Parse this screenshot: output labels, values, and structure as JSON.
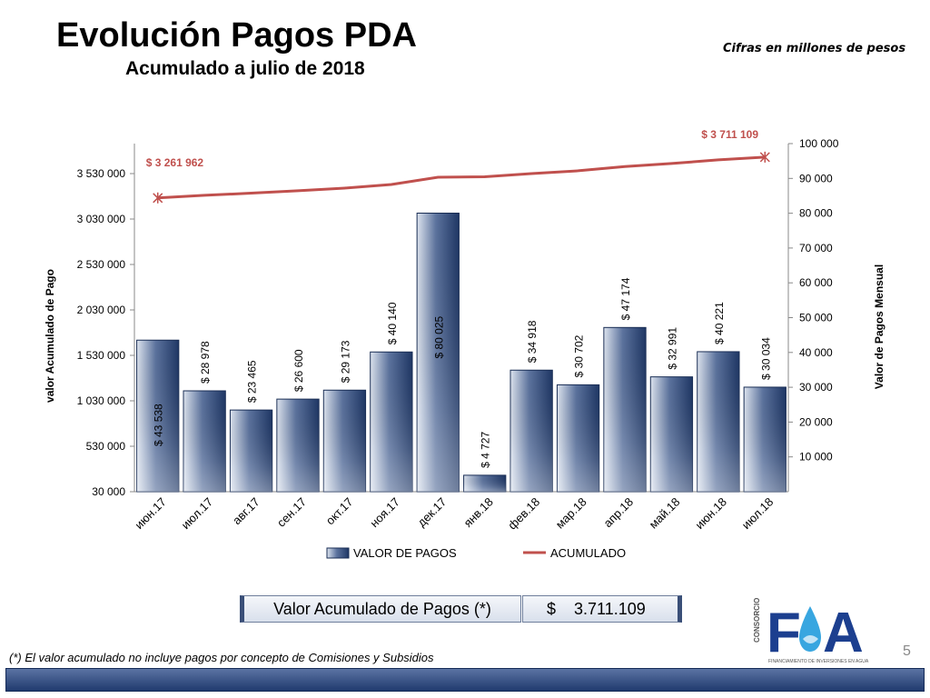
{
  "header": {
    "title": "Evolución Pagos PDA",
    "subtitle": "Acumulado a julio de 2018",
    "units_note": "Cifras en millones de pesos"
  },
  "chart_data": {
    "type": "bar",
    "categories": [
      "июн.17",
      "июл.17",
      "авг.17",
      "сен.17",
      "окт.17",
      "ноя.17",
      "дек.17",
      "янв.18",
      "фев.18",
      "мар.18",
      "апр.18",
      "май.18",
      "июн.18",
      "июл.18"
    ],
    "series": [
      {
        "name": "VALOR DE PAGOS",
        "axis": "right",
        "values": [
          43538,
          28978,
          23465,
          26600,
          29173,
          40140,
          80025,
          4727,
          34918,
          30702,
          47174,
          32991,
          40221,
          30034
        ],
        "labels": [
          "$ 43 538",
          "$ 28 978",
          "$ 23 465",
          "$ 26 600",
          "$ 29 173",
          "$ 40 140",
          "$ 80 025",
          "$ 4 727",
          "$ 34 918",
          "$ 30 702",
          "$ 47 174",
          "$ 32 991",
          "$ 40 221",
          "$ 30 034"
        ],
        "color": "#2a4576"
      },
      {
        "name": "ACUMULADO",
        "axis": "left",
        "type": "line",
        "values": [
          3261962,
          3290940,
          3314405,
          3341005,
          3370178,
          3410318,
          3490343,
          3495070,
          3529988,
          3560690,
          3607864,
          3640855,
          3681076,
          3711109
        ],
        "color": "#c0504d"
      }
    ],
    "point_labels": {
      "first": "$ 3 261 962",
      "last": "$ 3 711 109"
    },
    "ylabel": "valor  Acumulado de Pago",
    "y2label": "Valor de Pagos Mensual",
    "y_ticks": [
      "30 000",
      "530 000",
      "1 030 000",
      "1 530 000",
      "2 030 000",
      "2 530 000",
      "3 030 000",
      "3 530 000"
    ],
    "y2_ticks": [
      "10 000",
      "20 000",
      "30 000",
      "40 000",
      "50 000",
      "60 000",
      "70 000",
      "80 000",
      "90 000",
      "100 000"
    ],
    "ylim": [
      30000,
      3860000
    ],
    "y2lim": [
      0,
      100000
    ],
    "legend_position": "bottom",
    "grid": false
  },
  "summary": {
    "label": "Valor Acumulado de Pagos (*)",
    "currency": "$",
    "value": "3.711.109"
  },
  "footnote": "(*) El valor acumulado no incluye  pagos por concepto de Comisiones y Subsidios",
  "page_number": "5",
  "logo": {
    "vertical_text": "CONSORCIO",
    "caption": "FINANCIAMIENTO DE INVERSIONES EN AGUA",
    "colors": {
      "primary": "#1c3f8f",
      "water": "#38a6e0"
    }
  }
}
